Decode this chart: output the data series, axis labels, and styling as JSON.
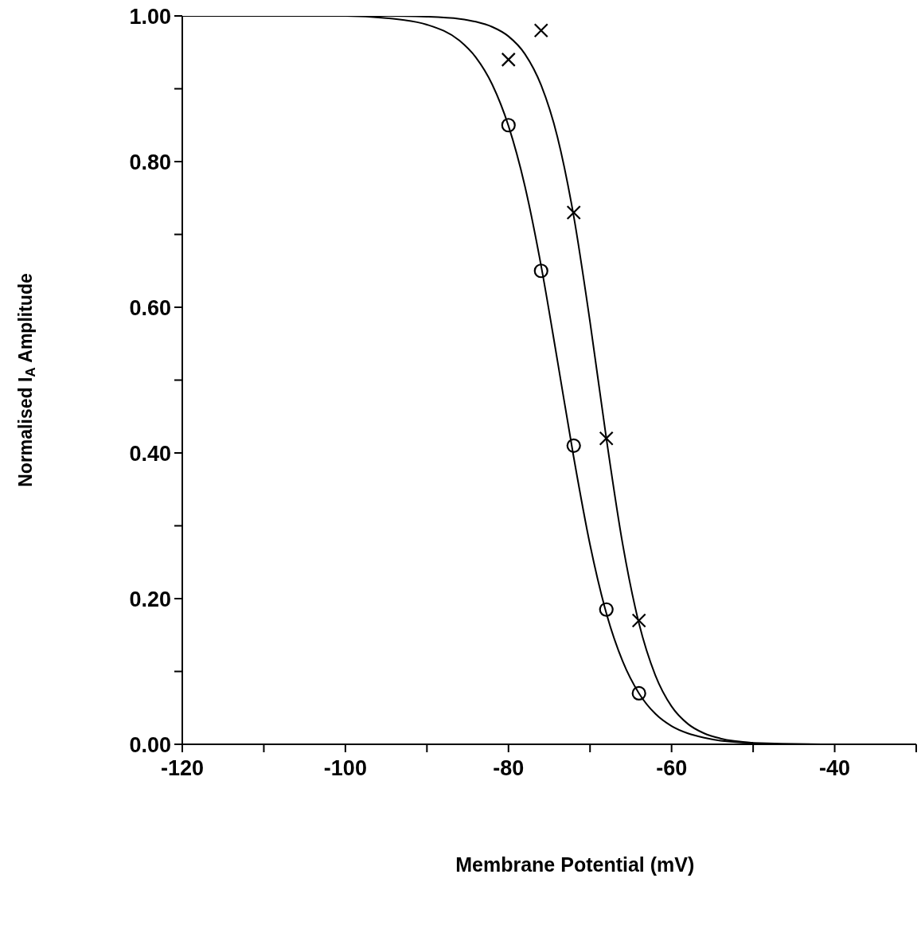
{
  "chart_data": {
    "type": "scatter",
    "xlabel": "Membrane Potential (mV)",
    "ylabel": "Normalised I$_{A}$ Amplitude",
    "xlim": [
      -120,
      -30
    ],
    "xticks": [
      -120,
      {
        "value": -110,
        "label": null
      },
      -100,
      {
        "value": -90,
        "label": null
      },
      -80,
      {
        "value": -70,
        "label": null
      },
      -60,
      {
        "value": -50,
        "label": null
      },
      -40,
      {
        "value": -30,
        "label": null
      }
    ],
    "ylim": [
      0,
      1
    ],
    "yticks": [
      {
        "value": 0,
        "label": "0.00"
      },
      {
        "value": 0.1,
        "label": null
      },
      {
        "value": 0.2,
        "label": "0.20"
      },
      {
        "value": 0.3,
        "label": null
      },
      {
        "value": 0.4,
        "label": "0.40"
      },
      {
        "value": 0.5,
        "label": null
      },
      {
        "value": 0.6,
        "label": "0.60"
      },
      {
        "value": 0.7,
        "label": null
      },
      {
        "value": 0.8,
        "label": "0.80"
      },
      {
        "value": 0.9,
        "label": null
      },
      {
        "value": 1,
        "label": "1.00"
      }
    ],
    "grid": false,
    "series": [
      {
        "type": "line",
        "marker": "none",
        "color": "#000000",
        "x": [
          -120,
          -100,
          -95,
          -90,
          -86,
          -84,
          -82,
          -80,
          -78,
          -76,
          -74,
          -72,
          -70,
          -68,
          -66,
          -64,
          -62,
          -60,
          -58,
          -56,
          -54,
          -50,
          -40,
          -30
        ],
        "values": [
          1,
          1,
          0.997,
          0.988,
          0.966,
          0.943,
          0.906,
          0.849,
          0.767,
          0.657,
          0.527,
          0.394,
          0.274,
          0.18,
          0.114,
          0.07,
          0.042,
          0.025,
          0.015,
          0.009,
          0.005,
          0.002,
          0,
          0
        ]
      },
      {
        "type": "line",
        "marker": "none",
        "color": "#000000",
        "x": [
          -100,
          -95,
          -90,
          -86,
          -84,
          -82,
          -80,
          -78,
          -76,
          -74,
          -72,
          -70,
          -68,
          -66,
          -64,
          -62,
          -60,
          -58,
          -56,
          -54,
          -50
        ],
        "values": [
          1,
          1,
          0.999,
          0.996,
          0.992,
          0.985,
          0.972,
          0.948,
          0.905,
          0.834,
          0.725,
          0.58,
          0.42,
          0.275,
          0.166,
          0.095,
          0.052,
          0.028,
          0.015,
          0.008,
          0.002
        ]
      },
      {
        "marker": "circle",
        "color": "#000000",
        "x": [
          -80,
          -76,
          -72,
          -68,
          -64
        ],
        "values": [
          0.85,
          0.65,
          0.41,
          0.185,
          0.07
        ]
      },
      {
        "marker": "cross",
        "color": "#000000",
        "x": [
          -80,
          -76,
          -72,
          -68,
          -64
        ],
        "values": [
          0.94,
          0.98,
          0.73,
          0.42,
          0.17
        ]
      }
    ]
  }
}
